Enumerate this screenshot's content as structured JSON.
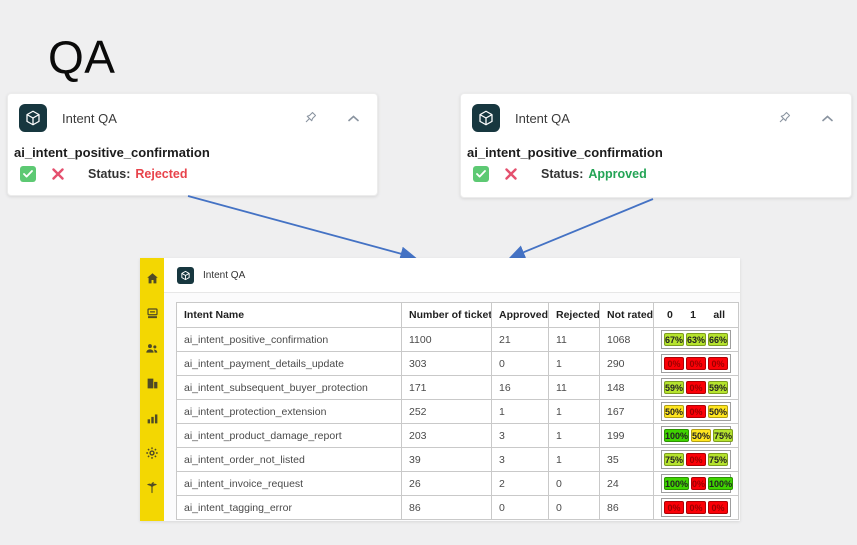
{
  "page": {
    "title": "QA"
  },
  "cards": [
    {
      "app_label": "Intent QA",
      "intent_name": "ai_intent_positive_confirmation",
      "status_label": "Status:",
      "status_value": "Rejected",
      "status_color": "#e8434b"
    },
    {
      "app_label": "Intent QA",
      "intent_name": "ai_intent_positive_confirmation",
      "status_label": "Status:",
      "status_value": "Approved",
      "status_color": "#23a455"
    }
  ],
  "panel": {
    "app_label": "Intent QA",
    "sidebar": {
      "icons": [
        "home-icon",
        "inbox-icon",
        "users-icon",
        "building-icon",
        "bar-chart-icon",
        "gear-icon",
        "palm-tree-icon"
      ]
    },
    "table": {
      "headers": [
        "Intent Name",
        "Number of tickets",
        "Approved",
        "Rejected",
        "Not rated"
      ],
      "score_headers": [
        "0",
        "1",
        "all"
      ],
      "rows": [
        {
          "intent": "ai_intent_positive_confirmation",
          "tickets": "1100",
          "approved": "21",
          "rejected": "11",
          "not_rated": "1068",
          "scores": [
            {
              "v": "67%",
              "c": "yg"
            },
            {
              "v": "63%",
              "c": "yg"
            },
            {
              "v": "66%",
              "c": "yg"
            }
          ]
        },
        {
          "intent": "ai_intent_payment_details_update",
          "tickets": "303",
          "approved": "0",
          "rejected": "1",
          "not_rated": "290",
          "scores": [
            {
              "v": "0%",
              "c": "r"
            },
            {
              "v": "0%",
              "c": "r"
            },
            {
              "v": "0%",
              "c": "r"
            }
          ]
        },
        {
          "intent": "ai_intent_subsequent_buyer_protection",
          "tickets": "171",
          "approved": "16",
          "rejected": "11",
          "not_rated": "148",
          "scores": [
            {
              "v": "59%",
              "c": "yg"
            },
            {
              "v": "0%",
              "c": "r"
            },
            {
              "v": "59%",
              "c": "yg"
            }
          ]
        },
        {
          "intent": "ai_intent_protection_extension",
          "tickets": "252",
          "approved": "1",
          "rejected": "1",
          "not_rated": "167",
          "scores": [
            {
              "v": "50%",
              "c": "y"
            },
            {
              "v": "0%",
              "c": "r"
            },
            {
              "v": "50%",
              "c": "y"
            }
          ]
        },
        {
          "intent": "ai_intent_product_damage_report",
          "tickets": "203",
          "approved": "3",
          "rejected": "1",
          "not_rated": "199",
          "scores": [
            {
              "v": "100%",
              "c": "g"
            },
            {
              "v": "50%",
              "c": "y"
            },
            {
              "v": "75%",
              "c": "yg"
            }
          ]
        },
        {
          "intent": "ai_intent_order_not_listed",
          "tickets": "39",
          "approved": "3",
          "rejected": "1",
          "not_rated": "35",
          "scores": [
            {
              "v": "75%",
              "c": "yg"
            },
            {
              "v": "0%",
              "c": "r"
            },
            {
              "v": "75%",
              "c": "yg"
            }
          ]
        },
        {
          "intent": "ai_intent_invoice_request",
          "tickets": "26",
          "approved": "2",
          "rejected": "0",
          "not_rated": "24",
          "scores": [
            {
              "v": "100%",
              "c": "g"
            },
            {
              "v": "0%",
              "c": "r"
            },
            {
              "v": "100%",
              "c": "g"
            }
          ]
        },
        {
          "intent": "ai_intent_tagging_error",
          "tickets": "86",
          "approved": "0",
          "rejected": "0",
          "not_rated": "86",
          "scores": [
            {
              "v": "0%",
              "c": "r"
            },
            {
              "v": "0%",
              "c": "r"
            },
            {
              "v": "0%",
              "c": "r"
            }
          ]
        }
      ]
    }
  },
  "colors": {
    "sidebar_bg": "#f3d702",
    "tile_bg": "#17373f",
    "arrow": "#4472c4",
    "badge_green": "#3fd400",
    "badge_yellowgreen": "#b5e32d",
    "badge_yellow": "#ffe51f",
    "badge_red": "#fb0007",
    "status_rejected": "#e8434b",
    "status_approved": "#23a455"
  }
}
